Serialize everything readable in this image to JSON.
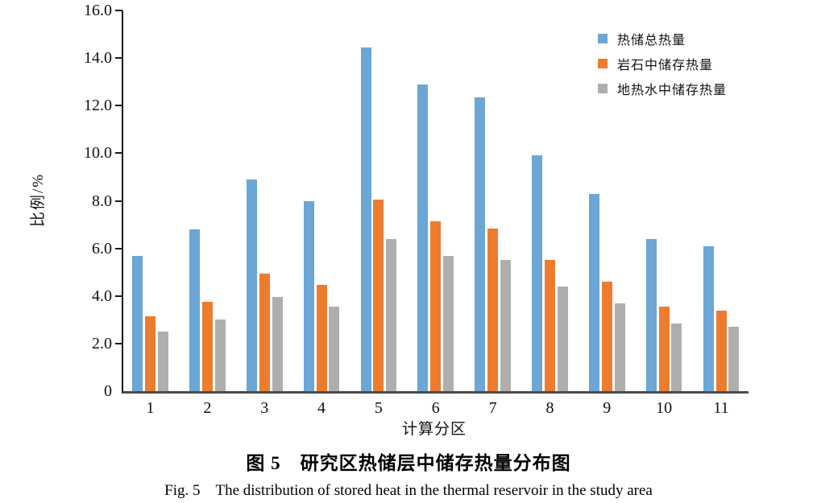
{
  "figure": {
    "caption_zh": "图 5　研究区热储层中储存热量分布图",
    "caption_en": "Fig. 5　The distribution of stored heat in the thermal reservoir in the study area"
  },
  "chart_data": {
    "type": "bar",
    "title": "研究区热储层中储存热量分布图",
    "xlabel": "计算分区",
    "ylabel": "比例/%",
    "categories": [
      "1",
      "2",
      "3",
      "4",
      "5",
      "6",
      "7",
      "8",
      "9",
      "10",
      "11"
    ],
    "series": [
      {
        "name": "热储总热量",
        "color": "#6BA6D5",
        "values": [
          5.7,
          6.8,
          8.9,
          8.0,
          14.45,
          12.9,
          12.35,
          9.9,
          8.3,
          6.4,
          6.1
        ]
      },
      {
        "name": "岩石中储存热量",
        "color": "#ED7C2F",
        "values": [
          3.15,
          3.75,
          4.95,
          4.45,
          8.05,
          7.15,
          6.85,
          5.5,
          4.6,
          3.55,
          3.4
        ]
      },
      {
        "name": "地热水中储存热量",
        "color": "#B0ADAD",
        "values": [
          2.5,
          3.0,
          3.95,
          3.55,
          6.4,
          5.7,
          5.5,
          4.4,
          3.7,
          2.85,
          2.7
        ]
      }
    ],
    "ylim": [
      0,
      16
    ],
    "yticks": {
      "values": [
        0,
        2,
        4,
        6,
        8,
        10,
        12,
        14,
        16
      ],
      "labels": [
        "0",
        "2.0",
        "4.0",
        "6.0",
        "8.0",
        "10.0",
        "12.0",
        "14.0",
        "16.0"
      ]
    },
    "grid": false,
    "legend_position": "top-right",
    "axis_colors": {
      "y_axis": "#1a1a1a",
      "x_axis": "#4d4d4d",
      "text": "#111111"
    }
  }
}
